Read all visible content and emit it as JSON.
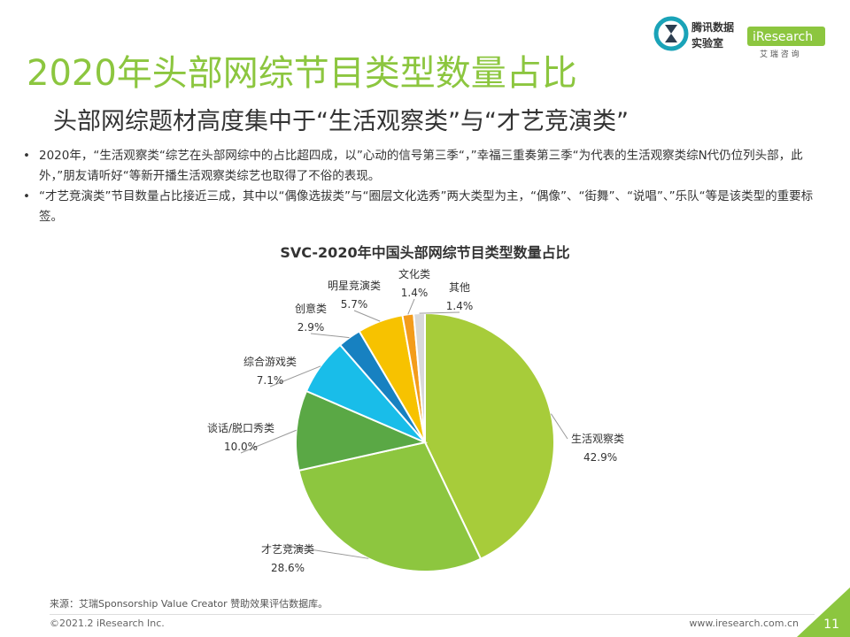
{
  "logos": {
    "tencent_line1": "腾讯数据",
    "tencent_line2": "实验室",
    "iresearch": "iResearch",
    "iresearch_cn": "艾 瑞 咨 询"
  },
  "title": "2020年头部网综节目类型数量占比",
  "subtitle": "头部网综题材高度集中于“生活观察类”与“才艺竞演类”",
  "bullets": [
    "2020年，“生活观察类“综艺在头部网综中的占比超四成，以”心动的信号第三季“，”幸福三重奏第三季“为代表的生活观察类综N代仍位列头部，此外，”朋友请听好“等新开播生活观察类综艺也取得了不俗的表现。",
    "“才艺竞演类”节目数量占比接近三成，其中以“偶像选拔类”与“圈层文化选秀”两大类型为主，“偶像”、“街舞”、“说唱”、”乐队“等是该类型的重要标签。"
  ],
  "chart_data": {
    "type": "pie",
    "title": "SVC-2020年中国头部网综节目类型数量占比",
    "slices": [
      {
        "label": "生活观察类",
        "value": 42.9,
        "value_label": "42.9%",
        "color": "#a7cc3a"
      },
      {
        "label": "才艺竞演类",
        "value": 28.6,
        "value_label": "28.6%",
        "color": "#8dc63f"
      },
      {
        "label": "谈话/脱口秀类",
        "value": 10.0,
        "value_label": "10.0%",
        "color": "#5aa845"
      },
      {
        "label": "综合游戏类",
        "value": 7.1,
        "value_label": "7.1%",
        "color": "#19bde9"
      },
      {
        "label": "创意类",
        "value": 2.9,
        "value_label": "2.9%",
        "color": "#1781c1"
      },
      {
        "label": "明星竞演类",
        "value": 5.7,
        "value_label": "5.7%",
        "color": "#f7c200"
      },
      {
        "label": "文化类",
        "value": 1.4,
        "value_label": "1.4%",
        "color": "#f39c1b"
      },
      {
        "label": "其他",
        "value": 1.4,
        "value_label": "1.4%",
        "color": "#d9d9d9"
      }
    ],
    "start": "12 o'clock",
    "direction": "clockwise"
  },
  "footer": {
    "source": "来源：艾瑞Sponsorship Value Creator 赞助效果评估数据库。",
    "copyright": "©2021.2 iResearch Inc.",
    "website": "www.iresearch.com.cn",
    "page": "11"
  }
}
